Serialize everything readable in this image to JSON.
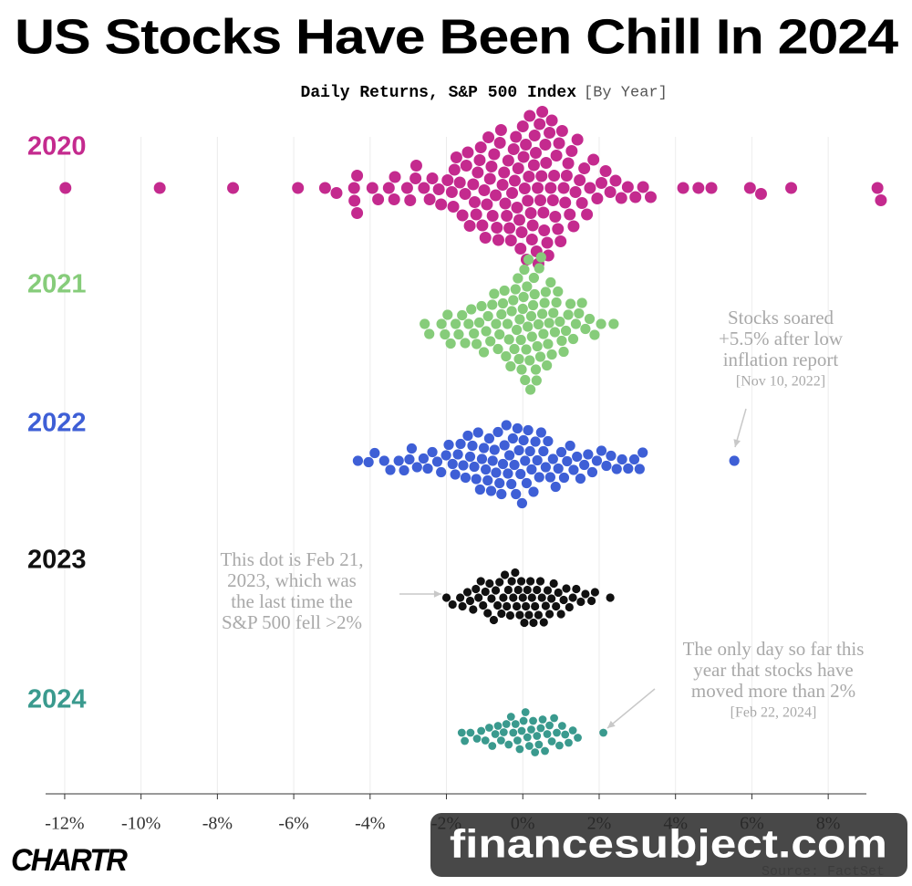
{
  "chart_data": {
    "type": "beeswarm",
    "title": "US Stocks Have Been Chill In 2024",
    "subtitle": "Daily Returns, S&P 500 Index",
    "subtitle_note": "[By Year]",
    "xlim": [
      -12.5,
      9
    ],
    "xticks": [
      {
        "value": -12,
        "label": "-12%"
      },
      {
        "value": -10,
        "label": "-10%"
      },
      {
        "value": -8,
        "label": "-8%"
      },
      {
        "value": -6,
        "label": "-6%"
      },
      {
        "value": -4,
        "label": "-4%"
      },
      {
        "value": -2,
        "label": "-2%"
      },
      {
        "value": 0,
        "label": "0%"
      },
      {
        "value": 2,
        "label": "2%"
      },
      {
        "value": 4,
        "label": "4%"
      },
      {
        "value": 6,
        "label": "6%"
      },
      {
        "value": 8,
        "label": "8%"
      }
    ],
    "grid": true,
    "series": [
      {
        "name": "2020",
        "color": "#c42a8e",
        "values": [
          -11.98,
          -9.51,
          -7.59,
          -5.89,
          -5.18,
          -4.88,
          -4.42,
          -4.41,
          -4.34,
          -4.34,
          -3.94,
          -3.79,
          -3.51,
          -3.37,
          -3.35,
          -3.03,
          -2.95,
          -2.81,
          -2.79,
          -2.59,
          -2.44,
          -2.37,
          -2.2,
          -2.14,
          -1.97,
          -1.86,
          -1.82,
          -1.79,
          -1.74,
          -1.65,
          -1.58,
          -1.51,
          -1.48,
          -1.44,
          -1.39,
          -1.3,
          -1.26,
          -1.22,
          -1.18,
          -1.13,
          -1.1,
          -1.06,
          -1.01,
          -0.98,
          -0.94,
          -0.9,
          -0.86,
          -0.82,
          -0.79,
          -0.75,
          -0.71,
          -0.68,
          -0.64,
          -0.6,
          -0.57,
          -0.53,
          -0.49,
          -0.46,
          -0.42,
          -0.38,
          -0.35,
          -0.31,
          -0.28,
          -0.24,
          -0.21,
          -0.18,
          -0.15,
          -0.12,
          -0.09,
          -0.06,
          -0.03,
          0,
          0.02,
          0.05,
          0.08,
          0.1,
          0.13,
          0.16,
          0.18,
          0.21,
          0.24,
          0.26,
          0.29,
          0.31,
          0.34,
          0.36,
          0.39,
          0.41,
          0.44,
          0.46,
          0.49,
          0.51,
          0.54,
          0.56,
          0.59,
          0.61,
          0.64,
          0.67,
          0.7,
          0.73,
          0.76,
          0.79,
          0.82,
          0.85,
          0.88,
          0.92,
          0.95,
          0.99,
          1.03,
          1.07,
          1.11,
          1.15,
          1.19,
          1.23,
          1.28,
          1.33,
          1.38,
          1.43,
          1.49,
          1.55,
          1.61,
          1.68,
          1.76,
          1.85,
          1.95,
          2.06,
          2.17,
          2.29,
          2.43,
          2.58,
          2.75,
          2.95,
          3.15,
          3.35,
          4.2,
          4.6,
          4.94,
          5.95,
          6.24,
          7.03,
          9.29,
          9.38
        ]
      },
      {
        "name": "2021",
        "color": "#86cc7a",
        "values": [
          -2.57,
          -2.45,
          -2.13,
          -2.04,
          -1.97,
          -1.89,
          -1.76,
          -1.68,
          -1.59,
          -1.51,
          -1.42,
          -1.35,
          -1.28,
          -1.21,
          -1.14,
          -1.08,
          -1.02,
          -0.96,
          -0.91,
          -0.85,
          -0.8,
          -0.75,
          -0.7,
          -0.65,
          -0.61,
          -0.56,
          -0.52,
          -0.48,
          -0.44,
          -0.4,
          -0.36,
          -0.32,
          -0.29,
          -0.25,
          -0.22,
          -0.19,
          -0.16,
          -0.13,
          -0.1,
          -0.08,
          -0.05,
          -0.03,
          0,
          0.02,
          0.04,
          0.06,
          0.09,
          0.11,
          0.13,
          0.15,
          0.18,
          0.2,
          0.22,
          0.24,
          0.27,
          0.29,
          0.31,
          0.34,
          0.36,
          0.38,
          0.41,
          0.43,
          0.46,
          0.48,
          0.51,
          0.54,
          0.57,
          0.6,
          0.63,
          0.66,
          0.69,
          0.73,
          0.76,
          0.8,
          0.84,
          0.88,
          0.92,
          0.97,
          1.02,
          1.07,
          1.13,
          1.19,
          1.25,
          1.32,
          1.39,
          1.47,
          1.55,
          1.64,
          1.75,
          1.88,
          2.05,
          2.38
        ]
      },
      {
        "name": "2022",
        "color": "#3e5fd6",
        "values": [
          -4.32,
          -4.04,
          -3.88,
          -3.63,
          -3.47,
          -3.25,
          -3.11,
          -2.97,
          -2.91,
          -2.77,
          -2.6,
          -2.49,
          -2.37,
          -2.24,
          -2.14,
          -2.01,
          -1.94,
          -1.84,
          -1.77,
          -1.7,
          -1.63,
          -1.56,
          -1.5,
          -1.44,
          -1.38,
          -1.32,
          -1.27,
          -1.22,
          -1.17,
          -1.12,
          -1.07,
          -1.02,
          -0.97,
          -0.92,
          -0.88,
          -0.83,
          -0.79,
          -0.74,
          -0.7,
          -0.65,
          -0.61,
          -0.56,
          -0.52,
          -0.48,
          -0.43,
          -0.39,
          -0.35,
          -0.3,
          -0.26,
          -0.22,
          -0.18,
          -0.14,
          -0.1,
          -0.06,
          -0.02,
          0.02,
          0.06,
          0.1,
          0.14,
          0.19,
          0.23,
          0.28,
          0.33,
          0.38,
          0.43,
          0.48,
          0.54,
          0.6,
          0.66,
          0.72,
          0.79,
          0.86,
          0.93,
          1.01,
          1.08,
          1.16,
          1.24,
          1.33,
          1.42,
          1.51,
          1.61,
          1.71,
          1.82,
          1.94,
          2.06,
          2.19,
          2.31,
          2.46,
          2.6,
          2.76,
          2.92,
          3.06,
          3.14,
          5.54
        ]
      },
      {
        "name": "2023",
        "color": "#111111",
        "values": [
          -2,
          -1.84,
          -1.64,
          -1.58,
          -1.45,
          -1.38,
          -1.3,
          -1.23,
          -1.16,
          -1.1,
          -1.04,
          -0.98,
          -0.92,
          -0.87,
          -0.82,
          -0.76,
          -0.71,
          -0.66,
          -0.61,
          -0.56,
          -0.51,
          -0.47,
          -0.42,
          -0.38,
          -0.33,
          -0.29,
          -0.25,
          -0.2,
          -0.16,
          -0.12,
          -0.08,
          -0.04,
          0,
          0.04,
          0.08,
          0.12,
          0.16,
          0.2,
          0.24,
          0.28,
          0.32,
          0.37,
          0.41,
          0.46,
          0.5,
          0.55,
          0.6,
          0.65,
          0.7,
          0.75,
          0.81,
          0.87,
          0.93,
          1,
          1.07,
          1.14,
          1.22,
          1.31,
          1.4,
          1.52,
          1.64,
          1.8,
          1.89,
          2.29
        ]
      },
      {
        "name": "2024",
        "color": "#3a9a8e",
        "values": [
          -1.6,
          -1.52,
          -1.37,
          -1.2,
          -1.09,
          -0.98,
          -0.88,
          -0.8,
          -0.72,
          -0.65,
          -0.57,
          -0.5,
          -0.43,
          -0.37,
          -0.31,
          -0.25,
          -0.19,
          -0.14,
          -0.08,
          -0.03,
          0.02,
          0.07,
          0.12,
          0.17,
          0.22,
          0.27,
          0.32,
          0.37,
          0.42,
          0.47,
          0.52,
          0.58,
          0.64,
          0.7,
          0.76,
          0.82,
          0.89,
          0.96,
          1.03,
          1.11,
          1.2,
          1.31,
          1.44,
          2.11
        ]
      }
    ],
    "annotations": [
      {
        "lines": [
          "Stocks soared",
          "+5.5% after low",
          "inflation report"
        ],
        "note": "[Nov 10, 2022]"
      },
      {
        "lines": [
          "This dot is Feb 21,",
          "2023, which was",
          "the last time the",
          "S&P 500 fell >2%"
        ]
      },
      {
        "lines": [
          "The only day so far this",
          "year that stocks have",
          "moved more than 2%"
        ],
        "note": "[Feb 22, 2024]"
      }
    ],
    "logo": "CHARTR",
    "source": "Source: FactSet",
    "watermark": "financesubject.com"
  }
}
